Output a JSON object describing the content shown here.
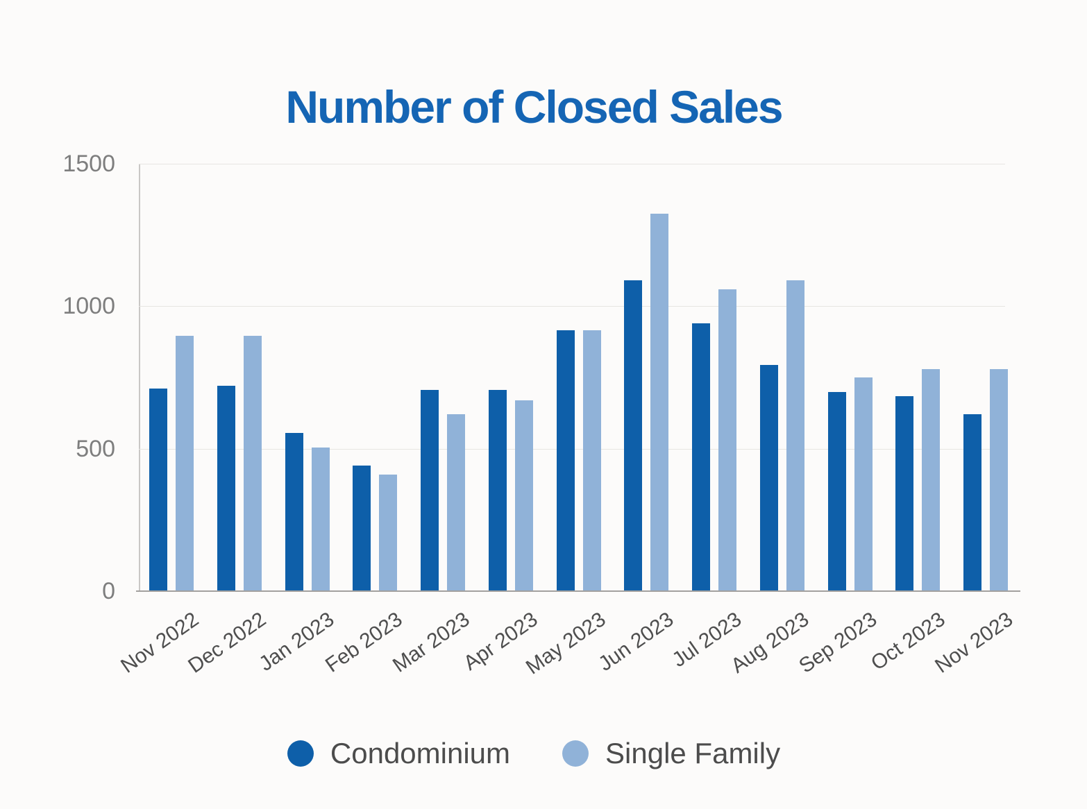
{
  "chart_data": {
    "type": "bar",
    "title": "Number of Closed Sales",
    "categories": [
      "Nov 2022",
      "Dec 2022",
      "Jan 2023",
      "Feb 2023",
      "Mar 2023",
      "Apr 2023",
      "May 2023",
      "Jun 2023",
      "Jul 2023",
      "Aug 2023",
      "Sep 2023",
      "Oct 2023",
      "Nov 2023"
    ],
    "series": [
      {
        "name": "Condominium",
        "color": "#0e5fa9",
        "values": [
          710,
          720,
          555,
          440,
          705,
          705,
          915,
          1090,
          940,
          795,
          700,
          685,
          620
        ]
      },
      {
        "name": "Single Family",
        "color": "#90b2d8",
        "values": [
          895,
          895,
          505,
          410,
          620,
          670,
          915,
          1325,
          1060,
          1090,
          750,
          780,
          780
        ]
      }
    ],
    "xlabel": "",
    "ylabel": "",
    "ylim": [
      0,
      1500
    ],
    "yticks": [
      0,
      500,
      1000,
      1500
    ],
    "grid": "horizontal",
    "legend_position": "bottom"
  },
  "colors": {
    "title": "#1565b4",
    "condominium_bar": "#0e5fa9",
    "single_family_bar": "#90b2d8",
    "axis_tick_text": "#7e7e7e",
    "category_text": "#4e4e4e",
    "legend_text": "#4c4c4c",
    "gridline": "#e7e5e2",
    "axis_line": "#a2a09e",
    "background": "#fcfbfa"
  }
}
